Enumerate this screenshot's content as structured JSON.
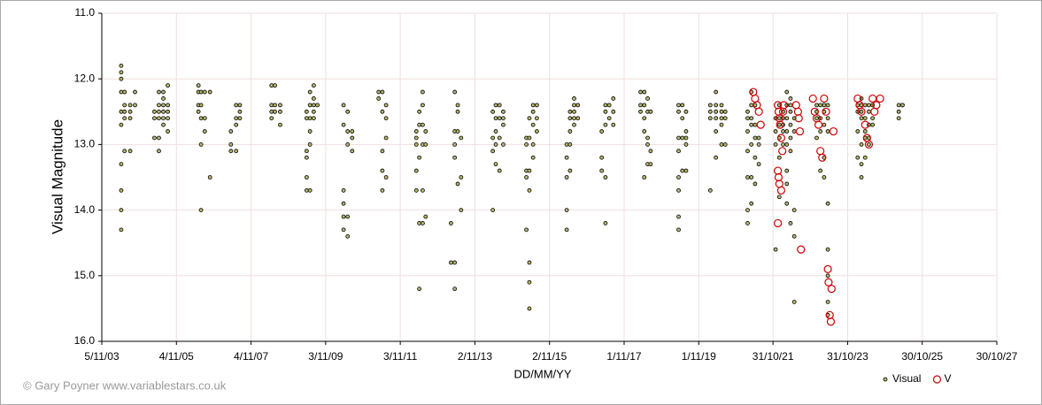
{
  "chart_data": {
    "type": "scatter",
    "xlabel": "DD/MM/YY",
    "ylabel": "Visual Magnitude",
    "credit": "© Gary Poyner www.variablestars.co.uk",
    "xlim": [
      2003.84,
      2027.83
    ],
    "xticks": [
      {
        "value": 2003.84,
        "label": "5/11/03"
      },
      {
        "value": 2005.84,
        "label": "4/11/05"
      },
      {
        "value": 2007.84,
        "label": "4/11/07"
      },
      {
        "value": 2009.84,
        "label": "3/11/09"
      },
      {
        "value": 2011.84,
        "label": "3/11/11"
      },
      {
        "value": 2013.84,
        "label": "2/11/13"
      },
      {
        "value": 2015.84,
        "label": "2/11/15"
      },
      {
        "value": 2017.84,
        "label": "1/11/17"
      },
      {
        "value": 2019.84,
        "label": "1/11/19"
      },
      {
        "value": 2021.83,
        "label": "31/10/21"
      },
      {
        "value": 2023.83,
        "label": "31/10/23"
      },
      {
        "value": 2025.83,
        "label": "30/10/25"
      },
      {
        "value": 2027.83,
        "label": "30/10/27"
      }
    ],
    "ylim": [
      11,
      16
    ],
    "y_inverted": true,
    "yticks": [
      {
        "value": 11,
        "label": "11.0"
      },
      {
        "value": 12,
        "label": "12.0"
      },
      {
        "value": 13,
        "label": "13.0"
      },
      {
        "value": 14,
        "label": "14.0"
      },
      {
        "value": 15,
        "label": "15.0"
      },
      {
        "value": 16,
        "label": "16.0"
      }
    ],
    "grid": true,
    "legend": "bottom-right",
    "series": [
      {
        "name": "Visual",
        "color": "#b5b56e",
        "marker": "dot",
        "x": [
          2004.36,
          2004.36,
          2004.36,
          2004.36,
          2004.36,
          2004.36,
          2004.36,
          2004.36,
          2004.36,
          2004.36,
          2004.45,
          2004.45,
          2004.45,
          2004.45,
          2004.45,
          2004.6,
          2004.6,
          2004.6,
          2004.6,
          2004.73,
          2004.73,
          2005.25,
          2005.25,
          2005.25,
          2005.37,
          2005.37,
          2005.37,
          2005.37,
          2005.37,
          2005.37,
          2005.49,
          2005.49,
          2005.49,
          2005.49,
          2005.49,
          2005.49,
          2005.61,
          2005.61,
          2005.61,
          2005.61,
          2005.61,
          2006.43,
          2006.43,
          2006.43,
          2006.43,
          2006.5,
          2006.5,
          2006.5,
          2006.5,
          2006.5,
          2006.6,
          2006.6,
          2006.6,
          2006.74,
          2006.74,
          2007.3,
          2007.3,
          2007.3,
          2007.44,
          2007.44,
          2007.44,
          2007.44,
          2007.54,
          2007.54,
          2007.54,
          2008.39,
          2008.39,
          2008.39,
          2008.39,
          2008.48,
          2008.48,
          2008.48,
          2008.62,
          2008.62,
          2008.62,
          2009.33,
          2009.33,
          2009.33,
          2009.33,
          2009.33,
          2009.33,
          2009.42,
          2009.42,
          2009.42,
          2009.42,
          2009.42,
          2009.42,
          2009.52,
          2009.52,
          2009.52,
          2009.52,
          2009.52,
          2009.62,
          2010.32,
          2010.32,
          2010.32,
          2010.32,
          2010.32,
          2010.32,
          2010.43,
          2010.43,
          2010.43,
          2010.43,
          2010.43,
          2010.55,
          2010.55,
          2010.55,
          2011.26,
          2011.26,
          2011.36,
          2011.36,
          2011.36,
          2011.36,
          2011.36,
          2011.46,
          2011.46,
          2011.46,
          2011.46,
          2012.27,
          2012.27,
          2012.27,
          2012.27,
          2012.27,
          2012.35,
          2012.35,
          2012.35,
          2012.35,
          2012.35,
          2012.44,
          2012.44,
          2012.44,
          2012.44,
          2012.44,
          2012.44,
          2012.52,
          2012.52,
          2012.52,
          2013.2,
          2013.2,
          2013.3,
          2013.3,
          2013.3,
          2013.3,
          2013.3,
          2013.3,
          2013.38,
          2013.38,
          2013.38,
          2013.38,
          2013.47,
          2013.47,
          2013.47,
          2014.32,
          2014.32,
          2014.32,
          2014.32,
          2014.4,
          2014.4,
          2014.4,
          2014.4,
          2014.4,
          2014.5,
          2014.5,
          2014.5,
          2014.5,
          2014.6,
          2014.6,
          2014.6,
          2014.6,
          2015.22,
          2015.22,
          2015.22,
          2015.22,
          2015.22,
          2015.3,
          2015.3,
          2015.3,
          2015.3,
          2015.3,
          2015.3,
          2015.3,
          2015.4,
          2015.4,
          2015.4,
          2015.4,
          2015.4,
          2015.5,
          2015.5,
          2015.5,
          2016.3,
          2016.3,
          2016.3,
          2016.3,
          2016.3,
          2016.39,
          2016.39,
          2016.39,
          2016.39,
          2016.39,
          2016.5,
          2016.5,
          2016.5,
          2016.5,
          2016.5,
          2016.6,
          2016.6,
          2017.24,
          2017.24,
          2017.24,
          2017.34,
          2017.34,
          2017.34,
          2017.34,
          2017.34,
          2017.44,
          2017.44,
          2017.55,
          2017.55,
          2017.55,
          2018.28,
          2018.28,
          2018.28,
          2018.38,
          2018.38,
          2018.38,
          2018.38,
          2018.38,
          2018.47,
          2018.47,
          2018.47,
          2018.47,
          2018.47,
          2018.55,
          2018.55,
          2018.55,
          2019.3,
          2019.3,
          2019.3,
          2019.3,
          2019.3,
          2019.3,
          2019.3,
          2019.3,
          2019.4,
          2019.4,
          2019.4,
          2019.4,
          2019.5,
          2019.5,
          2019.5,
          2019.5,
          2019.5,
          2020.15,
          2020.15,
          2020.15,
          2020.15,
          2020.3,
          2020.3,
          2020.3,
          2020.3,
          2020.3,
          2020.3,
          2020.45,
          2020.45,
          2020.45,
          2020.45,
          2020.45,
          2020.55,
          2020.55,
          2020.55,
          2021.15,
          2021.15,
          2021.15,
          2021.15,
          2021.15,
          2021.15,
          2021.15,
          2021.25,
          2021.25,
          2021.25,
          2021.25,
          2021.25,
          2021.25,
          2021.25,
          2021.35,
          2021.35,
          2021.35,
          2021.35,
          2021.35,
          2021.45,
          2021.45,
          2021.45,
          2021.9,
          2021.9,
          2021.9,
          2021.9,
          2022.0,
          2022.0,
          2022.0,
          2022.0,
          2022.0,
          2022.0,
          2022.1,
          2022.1,
          2022.1,
          2022.1,
          2022.1,
          2022.2,
          2022.2,
          2022.2,
          2022.2,
          2022.2,
          2022.2,
          2022.2,
          2022.2,
          2022.3,
          2022.3,
          2022.3,
          2022.3,
          2022.3,
          2022.3,
          2022.3,
          2022.4,
          2022.4,
          2022.4,
          2022.4,
          2022.4,
          2023.0,
          2023.0,
          2023.0,
          2023.0,
          2023.1,
          2023.1,
          2023.1,
          2023.1,
          2023.2,
          2023.2,
          2023.2,
          2023.2,
          2023.2,
          2023.3,
          2023.3,
          2023.3,
          2023.3,
          2023.3,
          2023.3,
          2023.3,
          2023.3,
          2024.1,
          2024.1,
          2024.1,
          2024.1,
          2024.2,
          2024.2,
          2024.2,
          2024.2,
          2024.2,
          2024.2,
          2024.2,
          2024.3,
          2024.3,
          2024.3,
          2024.3,
          2024.3,
          2024.4,
          2024.4,
          2024.4,
          2024.4,
          2024.4,
          2024.5,
          2024.5,
          2024.5,
          2025.2,
          2025.2,
          2025.2,
          2025.3,
          2025.3
        ],
        "values": [
          11.8,
          11.9,
          12.0,
          12.2,
          12.5,
          12.7,
          13.3,
          13.7,
          14.0,
          14.3,
          12.2,
          12.4,
          12.5,
          12.6,
          13.1,
          12.4,
          12.5,
          12.6,
          13.1,
          12.2,
          12.4,
          12.5,
          12.6,
          12.9,
          12.2,
          12.4,
          12.5,
          12.6,
          12.9,
          13.1,
          12.2,
          12.3,
          12.4,
          12.5,
          12.6,
          12.7,
          12.1,
          12.4,
          12.5,
          12.6,
          12.8,
          12.1,
          12.2,
          12.4,
          12.5,
          12.2,
          12.4,
          12.6,
          13.0,
          14.0,
          12.2,
          12.6,
          12.8,
          12.2,
          13.5,
          12.8,
          13.0,
          13.1,
          12.4,
          12.6,
          12.7,
          13.1,
          12.4,
          12.5,
          12.6,
          12.1,
          12.4,
          12.5,
          12.6,
          12.1,
          12.4,
          12.5,
          12.4,
          12.5,
          12.7,
          12.5,
          12.6,
          13.1,
          13.2,
          13.5,
          13.7,
          12.2,
          12.4,
          12.6,
          12.8,
          13.0,
          13.7,
          12.1,
          12.3,
          12.4,
          12.5,
          12.6,
          12.4,
          12.4,
          12.7,
          13.7,
          13.9,
          14.1,
          14.3,
          12.5,
          12.8,
          13.0,
          14.1,
          14.4,
          12.8,
          12.9,
          13.1,
          12.2,
          12.3,
          12.2,
          12.5,
          13.1,
          13.4,
          13.7,
          12.4,
          12.6,
          12.9,
          13.5,
          12.8,
          12.9,
          13.0,
          13.4,
          13.7,
          12.5,
          12.7,
          13.2,
          14.2,
          15.2,
          12.2,
          12.4,
          12.7,
          13.0,
          13.7,
          14.2,
          12.8,
          13.0,
          14.1,
          14.2,
          14.8,
          12.2,
          12.8,
          13.0,
          13.2,
          14.8,
          15.2,
          12.4,
          12.5,
          12.8,
          13.6,
          12.9,
          13.5,
          14.0,
          12.5,
          12.9,
          13.1,
          14.0,
          12.4,
          12.6,
          12.8,
          13.0,
          13.3,
          12.4,
          12.6,
          12.9,
          13.4,
          12.5,
          12.6,
          12.7,
          13.0,
          12.9,
          13.0,
          13.4,
          13.5,
          14.3,
          12.6,
          12.9,
          13.4,
          13.7,
          14.8,
          15.1,
          15.5,
          12.4,
          12.5,
          12.7,
          13.0,
          13.2,
          12.4,
          12.6,
          12.8,
          13.0,
          13.2,
          13.5,
          14.0,
          14.3,
          12.5,
          12.6,
          12.8,
          13.0,
          13.4,
          12.3,
          12.4,
          12.5,
          12.6,
          12.7,
          12.4,
          12.6,
          12.8,
          13.2,
          13.4,
          12.4,
          12.5,
          12.7,
          13.5,
          14.2,
          12.4,
          12.6,
          12.3,
          12.5,
          12.7,
          12.2,
          12.4,
          12.5,
          12.2,
          12.4,
          12.6,
          12.8,
          13.5,
          12.3,
          12.5,
          12.9,
          13.0,
          13.3,
          12.5,
          13.1,
          13.3,
          12.4,
          12.5,
          12.9,
          13.1,
          13.5,
          13.7,
          14.1,
          14.3,
          12.4,
          12.6,
          12.9,
          13.4,
          12.5,
          12.8,
          12.9,
          13.0,
          13.4,
          12.4,
          12.5,
          12.6,
          13.7,
          12.2,
          12.4,
          12.5,
          12.6,
          12.8,
          13.2,
          12.4,
          12.5,
          12.6,
          12.7,
          13.0,
          12.5,
          12.6,
          13.0,
          12.5,
          12.6,
          12.8,
          13.1,
          13.5,
          14.0,
          14.2,
          12.2,
          12.4,
          12.6,
          12.7,
          13.0,
          13.5,
          13.9,
          12.4,
          12.7,
          12.9,
          13.2,
          13.6,
          12.9,
          13.0,
          13.3,
          12.6,
          12.8,
          13.0,
          14.6,
          12.4,
          12.6,
          12.7,
          12.9,
          13.2,
          13.8,
          12.5,
          12.6,
          12.7,
          12.8,
          13.0,
          12.2,
          12.4,
          12.6,
          12.8,
          13.0,
          13.4,
          13.6,
          13.9,
          12.3,
          12.4,
          12.5,
          12.7,
          12.9,
          13.1,
          14.2,
          12.6,
          12.8,
          14.0,
          14.4,
          15.4,
          12.4,
          12.5,
          12.6,
          12.9,
          12.4,
          12.6,
          12.8,
          13.4,
          12.4,
          12.5,
          12.7,
          13.2,
          13.5,
          12.4,
          12.6,
          12.8,
          13.9,
          14.6,
          15.0,
          15.4,
          15.6,
          12.4,
          12.5,
          12.8,
          13.2,
          12.3,
          12.4,
          12.5,
          12.6,
          13.0,
          13.3,
          13.5,
          12.4,
          12.6,
          12.8,
          12.9,
          13.2,
          12.4,
          12.5,
          12.7,
          12.9,
          13.0,
          12.4,
          12.6,
          12.7,
          12.4,
          12.5,
          12.6,
          12.4,
          12.4
        ]
      },
      {
        "name": "V",
        "color": "#cc0000",
        "marker": "ring",
        "x": [
          2021.3,
          2021.35,
          2021.4,
          2021.45,
          2021.5,
          2021.96,
          2021.98,
          2022.0,
          2022.02,
          2022.05,
          2022.08,
          2022.1,
          2022.12,
          2021.96,
          2021.98,
          2022.0,
          2022.05,
          2021.96,
          2022.45,
          2022.5,
          2022.52,
          2022.55,
          2022.58,
          2022.9,
          2022.95,
          2023.0,
          2023.05,
          2023.1,
          2023.15,
          2023.2,
          2023.25,
          2023.3,
          2023.32,
          2023.35,
          2023.38,
          2023.4,
          2023.45,
          2024.1,
          2024.15,
          2024.2,
          2024.3,
          2024.35,
          2024.4,
          2024.5,
          2024.55,
          2024.6,
          2024.7
        ],
        "values": [
          12.2,
          12.3,
          12.4,
          12.5,
          12.7,
          12.4,
          12.5,
          12.6,
          12.7,
          12.9,
          13.1,
          12.5,
          12.4,
          13.4,
          13.5,
          13.6,
          13.7,
          14.2,
          12.4,
          12.5,
          12.6,
          12.8,
          14.6,
          12.3,
          12.5,
          12.6,
          12.7,
          13.1,
          13.2,
          12.3,
          12.5,
          14.9,
          15.1,
          15.6,
          15.7,
          15.2,
          12.8,
          12.3,
          12.4,
          12.5,
          12.7,
          12.9,
          13.0,
          12.3,
          12.5,
          12.4,
          12.3
        ]
      }
    ]
  }
}
